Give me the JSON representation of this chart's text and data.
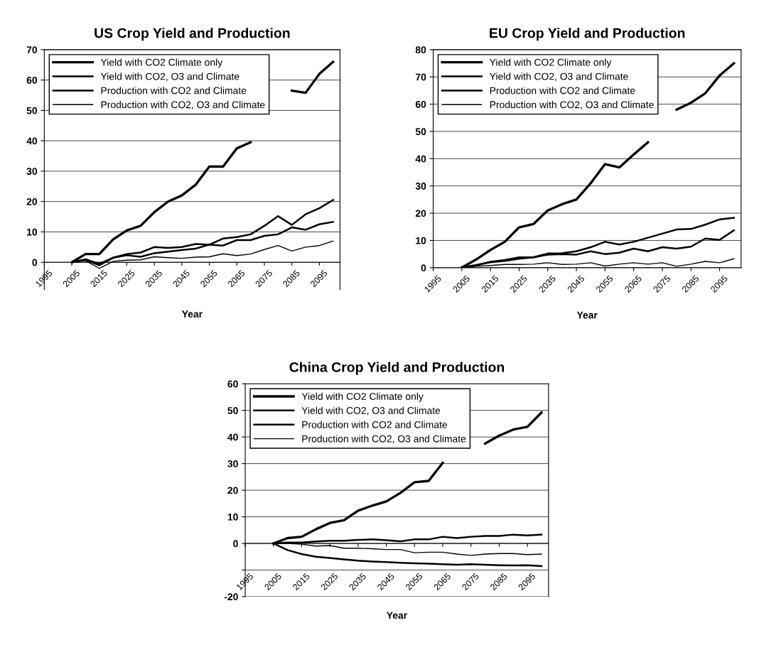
{
  "chart_data": [
    {
      "type": "line",
      "title": "US Crop Yield and Production",
      "xlabel": "Year",
      "x": [
        2005,
        2010,
        2015,
        2020,
        2025,
        2030,
        2035,
        2040,
        2045,
        2050,
        2055,
        2060,
        2065,
        2070,
        2075,
        2080,
        2085,
        2090,
        2095,
        2100
      ],
      "series": [
        {
          "name": "Yield with CO2 Climate only",
          "color": "#000000",
          "values": [
            0,
            2.7,
            2.7,
            7.5,
            10.5,
            12,
            16.5,
            20,
            22,
            25.5,
            31.5,
            31.5,
            37.5,
            39.5,
            null,
            null,
            56.5,
            55.8,
            62,
            66
          ]
        },
        {
          "name": "Yield with CO2, O3 and Climate",
          "color": "#000000",
          "values": [
            0,
            1,
            -0.5,
            1.5,
            2.7,
            3.2,
            5,
            4.7,
            5,
            6,
            5.8,
            5.5,
            7.3,
            7.3,
            8.7,
            9.2,
            11.5,
            10.7,
            12.5,
            13.3
          ]
        },
        {
          "name": "Production with CO2 and Climate",
          "color": "#000000",
          "values": [
            0,
            0.8,
            -1,
            1.5,
            2.3,
            1.8,
            3,
            3.5,
            4,
            4.5,
            5.8,
            7.8,
            8.3,
            9.2,
            12,
            15.2,
            12.3,
            15.8,
            17.8,
            20.5
          ]
        },
        {
          "name": "Production with CO2, O3 and Climate",
          "color": "#000000",
          "values": [
            0,
            0.5,
            -2,
            0.3,
            0.7,
            0.8,
            1.8,
            1.5,
            1.3,
            1.7,
            1.8,
            2.8,
            2.2,
            2.7,
            4.2,
            5.5,
            3.7,
            5,
            5.5,
            7
          ]
        }
      ],
      "xlim": [
        1995,
        2102.5
      ],
      "xticks": [
        1995,
        2005,
        2015,
        2025,
        2035,
        2045,
        2055,
        2065,
        2075,
        2085,
        2095
      ],
      "ylim": [
        -9,
        70
      ],
      "yticks": [
        0,
        10,
        20,
        30,
        40,
        50,
        60,
        70
      ],
      "grid": "y",
      "legend": "top left"
    },
    {
      "type": "line",
      "title": "EU Crop Yield and Production",
      "xlabel": "Year",
      "x": [
        2005,
        2010,
        2015,
        2020,
        2025,
        2030,
        2035,
        2040,
        2045,
        2050,
        2055,
        2060,
        2065,
        2070,
        2075,
        2080,
        2085,
        2090,
        2095,
        2100
      ],
      "series": [
        {
          "name": "Yield with CO2 Climate only",
          "color": "#000000",
          "values": [
            0,
            3,
            6.5,
            9.5,
            14.8,
            16,
            21,
            23.3,
            25,
            31,
            38,
            36.8,
            41.5,
            46,
            null,
            58,
            60.5,
            64,
            70.5,
            75
          ]
        },
        {
          "name": "Yield with CO2, O3 and Climate",
          "color": "#000000",
          "values": [
            0,
            0.8,
            2.2,
            2.8,
            3.8,
            3.8,
            4.8,
            5,
            4.8,
            6,
            5,
            5.5,
            7,
            6,
            7.5,
            7,
            7.7,
            10.7,
            10.2,
            13.7
          ]
        },
        {
          "name": "Production with CO2 and Climate",
          "color": "#000000",
          "values": [
            0,
            1,
            2,
            2.5,
            3.3,
            3.8,
            5.2,
            5.3,
            6,
            7.5,
            9.5,
            8.5,
            9.5,
            11,
            12.5,
            14,
            14.2,
            15.8,
            17.7,
            18.3
          ]
        },
        {
          "name": "Production with CO2, O3 and Climate",
          "color": "#000000",
          "values": [
            0,
            0.5,
            0.8,
            1.2,
            1.2,
            1.3,
            1.8,
            1.2,
            1.3,
            1.8,
            0.6,
            1.3,
            1.8,
            1.3,
            1.8,
            0.5,
            1.3,
            2.3,
            1.8,
            3.3
          ]
        }
      ],
      "xlim": [
        1995,
        2102.5
      ],
      "xticks": [
        1995,
        2005,
        2015,
        2025,
        2035,
        2045,
        2055,
        2065,
        2075,
        2085,
        2095
      ],
      "ylim": [
        0,
        80
      ],
      "yticks": [
        0,
        10,
        20,
        30,
        40,
        50,
        60,
        70,
        80
      ],
      "grid": "y",
      "legend": "top left"
    },
    {
      "type": "line",
      "title": "China Crop Yield and Production",
      "xlabel": "Year",
      "x": [
        2005,
        2010,
        2015,
        2020,
        2025,
        2030,
        2035,
        2040,
        2045,
        2050,
        2055,
        2060,
        2065,
        2070,
        2075,
        2080,
        2085,
        2090,
        2095,
        2100
      ],
      "series": [
        {
          "name": "Yield with CO2 Climate only",
          "color": "#000000",
          "values": [
            0,
            2,
            2.5,
            5.3,
            7.7,
            8.7,
            12.3,
            14.2,
            15.8,
            19,
            23,
            23.5,
            30.3,
            null,
            null,
            37.5,
            40.5,
            42.8,
            43.8,
            49.2
          ]
        },
        {
          "name": "Yield with CO2, O3 and Climate",
          "color": "#000000",
          "values": [
            0,
            -2.5,
            -4,
            -5,
            -5.5,
            -6,
            -6.5,
            -6.8,
            -7,
            -7.3,
            -7.5,
            -7.6,
            -7.8,
            -8,
            -7.8,
            -8,
            -8.2,
            -8.3,
            -8.2,
            -8.5
          ]
        },
        {
          "name": "Production with CO2 and Climate",
          "color": "#000000",
          "values": [
            0,
            0.3,
            0.3,
            0.7,
            1,
            1,
            1.3,
            1.5,
            1.2,
            0.8,
            1.5,
            1.5,
            2.5,
            2,
            2.5,
            2.8,
            2.8,
            3.3,
            3,
            3.3
          ]
        },
        {
          "name": "Production with CO2, O3 and Climate",
          "color": "#000000",
          "values": [
            0,
            0,
            -0.3,
            -1,
            -0.8,
            -1.8,
            -1.8,
            -2,
            -2.3,
            -2.3,
            -3.5,
            -3.3,
            -3.3,
            -4,
            -4.5,
            -4,
            -3.8,
            -3.8,
            -4.2,
            -4
          ]
        }
      ],
      "xlim": [
        1995,
        2102.5
      ],
      "xticks": [
        1995,
        2005,
        2015,
        2025,
        2035,
        2045,
        2055,
        2065,
        2075,
        2085,
        2095
      ],
      "ylim": [
        -20,
        60
      ],
      "yticks": [
        -20,
        {
          "value": -10,
          "label": null
        },
        0,
        10,
        20,
        30,
        40,
        50,
        60
      ],
      "grid": "y",
      "legend": "top left"
    }
  ]
}
